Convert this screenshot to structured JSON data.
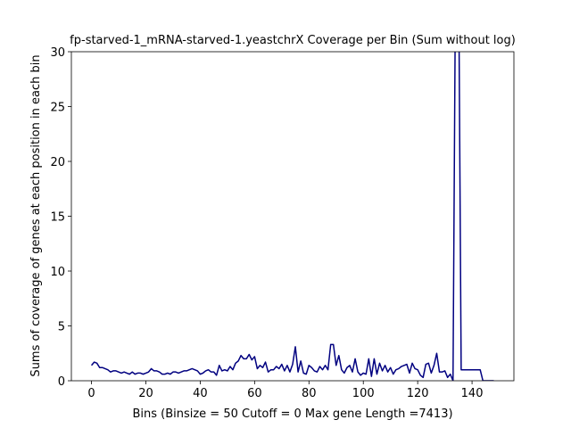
{
  "chart_data": {
    "type": "line",
    "title": "fp-starved-1_mRNA-starved-1.yeastchrX Coverage per Bin (Sum without log)",
    "x_label": "Bins  (Binsize = 50 Cutoff = 0 Max gene Length =7413)",
    "y_label": "Sums of coverage of genes at each position in each bin",
    "x": [
      0,
      1,
      2,
      3,
      4,
      5,
      6,
      7,
      8,
      9,
      10,
      11,
      12,
      13,
      14,
      15,
      16,
      17,
      18,
      19,
      20,
      21,
      22,
      23,
      24,
      25,
      26,
      27,
      28,
      29,
      30,
      31,
      32,
      33,
      34,
      35,
      36,
      37,
      38,
      39,
      40,
      41,
      42,
      43,
      44,
      45,
      46,
      47,
      48,
      49,
      50,
      51,
      52,
      53,
      54,
      55,
      56,
      57,
      58,
      59,
      60,
      61,
      62,
      63,
      64,
      65,
      66,
      67,
      68,
      69,
      70,
      71,
      72,
      73,
      74,
      75,
      76,
      77,
      78,
      79,
      80,
      81,
      82,
      83,
      84,
      85,
      86,
      87,
      88,
      89,
      90,
      91,
      92,
      93,
      94,
      95,
      96,
      97,
      98,
      99,
      100,
      101,
      102,
      103,
      104,
      105,
      106,
      107,
      108,
      109,
      110,
      111,
      112,
      113,
      114,
      115,
      116,
      117,
      118,
      119,
      120,
      121,
      122,
      123,
      124,
      125,
      126,
      127,
      128,
      129,
      130,
      131,
      132,
      133,
      134,
      135,
      136,
      137,
      138,
      139,
      140,
      141,
      142,
      143,
      144,
      145,
      146,
      147,
      148
    ],
    "series": [
      {
        "color": "#000080",
        "values": [
          1.4,
          1.7,
          1.6,
          1.2,
          1.2,
          1.1,
          1.0,
          0.8,
          0.9,
          0.9,
          0.8,
          0.7,
          0.8,
          0.7,
          0.6,
          0.8,
          0.6,
          0.7,
          0.7,
          0.6,
          0.7,
          0.8,
          1.1,
          0.9,
          0.9,
          0.8,
          0.6,
          0.6,
          0.7,
          0.6,
          0.8,
          0.8,
          0.7,
          0.8,
          0.9,
          0.9,
          1.0,
          1.1,
          1.0,
          0.9,
          0.6,
          0.7,
          0.9,
          1.0,
          0.8,
          0.8,
          0.5,
          1.4,
          0.9,
          1.0,
          0.9,
          1.3,
          1.0,
          1.6,
          1.8,
          2.3,
          2.0,
          2.0,
          2.4,
          1.9,
          2.2,
          1.1,
          1.4,
          1.2,
          1.7,
          0.8,
          1.0,
          1.0,
          1.3,
          1.1,
          1.5,
          0.9,
          1.4,
          0.8,
          1.5,
          3.1,
          0.8,
          1.8,
          0.7,
          0.6,
          1.4,
          1.2,
          0.9,
          0.8,
          1.3,
          1.0,
          1.4,
          1.0,
          3.3,
          3.3,
          1.4,
          2.3,
          1.0,
          0.7,
          1.2,
          1.4,
          0.8,
          2.0,
          0.8,
          0.5,
          0.7,
          0.6,
          2.0,
          0.4,
          2.0,
          0.6,
          1.6,
          0.9,
          1.4,
          0.8,
          1.2,
          0.6,
          1.0,
          1.1,
          1.3,
          1.4,
          1.5,
          0.7,
          1.6,
          1.1,
          1.0,
          0.5,
          0.3,
          1.5,
          1.6,
          0.7,
          1.4,
          2.5,
          0.8,
          0.8,
          0.9,
          0.3,
          0.6,
          0.0,
          40,
          40,
          1,
          1,
          1,
          1,
          1,
          1,
          1,
          1,
          0,
          0,
          0,
          0,
          0
        ]
      }
    ],
    "xlim": [
      -7.4,
      155.4
    ],
    "ylim": [
      0,
      30
    ],
    "xticks": [
      0,
      20,
      40,
      60,
      80,
      100,
      120,
      140
    ],
    "yticks": [
      0,
      5,
      10,
      15,
      20,
      25,
      30
    ]
  }
}
